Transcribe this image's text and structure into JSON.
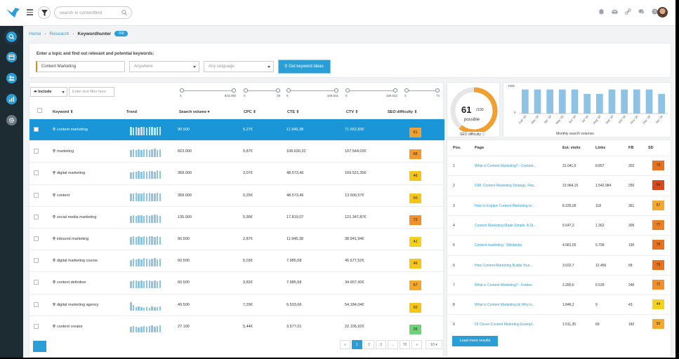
{
  "search": {
    "placeholder": "search in contentbird"
  },
  "breadcrumb": {
    "home": "Home",
    "research": "Research",
    "current": "Keywordhunter",
    "badge": "700"
  },
  "form": {
    "question": "Enter a topic and find out relevant and potential keywords:",
    "topic_value": "Content Marketing",
    "location_value": "Anywhere",
    "language_value": "Any language",
    "button_label": "Get keyword ideas"
  },
  "filters": {
    "include_label": "Include",
    "text_filter_placeholder": "Enter text filter here",
    "sliders": [
      {
        "lo": "0",
        "hi": "823.000"
      },
      {
        "lo": "0",
        "hi": "29"
      },
      {
        "lo": "0",
        "hi": "108.631"
      },
      {
        "lo": "0",
        "hi": "169.522"
      },
      {
        "lo": "3",
        "hi": "72"
      }
    ]
  },
  "table": {
    "headers": {
      "keyword": "Keyword ⇕",
      "trend": "Trend",
      "volume": "Search volume ▾",
      "cpc": "CPC ⇕",
      "cte": "CTE ⇕",
      "ctv": "CTV ⇕",
      "seo": "SEO difficulty ⇕"
    },
    "rows": [
      {
        "keyword": "content marketing",
        "volume": "90.500",
        "cpc": "5,27€",
        "cte": "11.945,38",
        "ctv": "71.552,83€",
        "seo": "61",
        "color": "#f0a030",
        "trend": [
          12,
          11,
          12,
          11,
          12,
          12,
          11,
          12,
          12,
          11,
          12,
          12
        ]
      },
      {
        "keyword": "marketing",
        "volume": "823.000",
        "cpc": "0,87€",
        "cte": "108.630,32",
        "ctv": "107.544,02€",
        "seo": "68",
        "color": "#f39a2c",
        "trend": [
          10,
          11,
          10,
          11,
          10,
          11,
          11,
          10,
          11,
          12,
          10,
          11
        ]
      },
      {
        "keyword": "digital marketing",
        "volume": "368.000",
        "cpc": "3,07€",
        "cte": "48.573,46",
        "ctv": "169.521,35€",
        "seo": "46",
        "color": "#f5c518",
        "trend": [
          9,
          10,
          10,
          11,
          10,
          11,
          10,
          11,
          11,
          10,
          12,
          11
        ]
      },
      {
        "keyword": "content",
        "volume": "368.000",
        "cpc": "0,25€",
        "cte": "48.573,46",
        "ctv": "13.600,57€",
        "seo": "50",
        "color": "#f5c518",
        "trend": [
          11,
          11,
          12,
          11,
          11,
          12,
          11,
          12,
          11,
          11,
          12,
          11
        ]
      },
      {
        "keyword": "social media marketing",
        "volume": "135.000",
        "cpc": "5,99€",
        "cte": "17.819,07",
        "ctv": "121.347,87€",
        "seo": "72",
        "color": "#f0902a",
        "trend": [
          10,
          11,
          10,
          11,
          11,
          10,
          11,
          10,
          11,
          12,
          11,
          10
        ]
      },
      {
        "keyword": "inbound marketing",
        "volume": "90.500",
        "cpc": "2,87€",
        "cte": "11.945,38",
        "ctv": "38.941,94€",
        "seo": "41",
        "color": "#f5d21a",
        "trend": [
          11,
          12,
          11,
          12,
          11,
          12,
          11,
          12,
          12,
          11,
          12,
          11
        ]
      },
      {
        "keyword": "digital marketing course",
        "volume": "60.500",
        "cpc": "5,03€",
        "cte": "7.985,58",
        "ctv": "45.677,52€",
        "seo": "46",
        "color": "#f5c518",
        "trend": [
          9,
          11,
          10,
          11,
          10,
          12,
          11,
          10,
          11,
          12,
          10,
          11
        ]
      },
      {
        "keyword": "content definition",
        "volume": "60.500",
        "cpc": "3,82€",
        "cte": "7.985,58",
        "ctv": "34.657,42€",
        "seo": "57",
        "color": "#f4a82c",
        "trend": [
          10,
          11,
          11,
          10,
          11,
          10,
          11,
          11,
          10,
          11,
          10,
          11
        ]
      },
      {
        "keyword": "digital marketing agency",
        "volume": "49.500",
        "cpc": "7,29€",
        "cte": "6.533,66",
        "ctv": "54.184,04€",
        "seo": "50",
        "color": "#f5c518",
        "trend": [
          12,
          8,
          5,
          6,
          5,
          4,
          5,
          4,
          6,
          5,
          5,
          6
        ]
      },
      {
        "keyword": "content creator",
        "volume": "27.100",
        "cpc": "5,44€",
        "cte": "3.577,01",
        "ctv": "22.105,92€",
        "seo": "26",
        "color": "#6fd37a",
        "trend": [
          8,
          9,
          8,
          7,
          8,
          9,
          8,
          9,
          10,
          8,
          9,
          10
        ]
      }
    ]
  },
  "pagination": {
    "prev": "«",
    "pages": [
      "1",
      "2",
      "3",
      "...",
      "70"
    ],
    "next": "»",
    "size": "10 ▾"
  },
  "difficulty": {
    "value": "61",
    "of": "/100",
    "label": "possible",
    "caption": "SEO difficulty ⓘ",
    "fraction": 0.61
  },
  "chart_data": {
    "type": "bar",
    "title": "",
    "xlabel": "Monthly search volumes",
    "ylabel": "",
    "ylim": [
      0,
      100000
    ],
    "yticks": [
      "100k",
      "0"
    ],
    "categories": [
      "Feb '18",
      "Mar '18",
      "Apr '18",
      "May '18",
      "Jun '18",
      "Jul '18",
      "Aug '18",
      "Sep '18",
      "Oct '18",
      "Nov '18",
      "Dec '18",
      "Jan '19"
    ],
    "values": [
      90500,
      90500,
      90500,
      90500,
      90500,
      74000,
      74000,
      90500,
      90500,
      90500,
      90500,
      74000
    ]
  },
  "serp": {
    "headers": {
      "pos": "Pos.",
      "page": "Page",
      "visits": "Est. visits",
      "links": "Links",
      "fb": "FB",
      "sd": "SD"
    },
    "rows": [
      {
        "pos": "1",
        "page": "What is Content Marketing? - Content...",
        "visits": "31.041,5",
        "links": "8.857",
        "fb": "202",
        "sd": "79",
        "color": "#e8731e"
      },
      {
        "pos": "2",
        "page": "CMI: Content Marketing Strategy, Res...",
        "visits": "13.964,15",
        "links": "1.542.084",
        "fb": "250",
        "sd": "94",
        "color": "#d64a1c"
      },
      {
        "pos": "3",
        "page": "How to Explain Content Marketing to...",
        "visits": "8.335,05",
        "links": "118",
        "fb": "361",
        "sd": "57",
        "color": "#f4a82c"
      },
      {
        "pos": "4",
        "page": "Content Marketing Made Simple: A St...",
        "visits": "5.647,2",
        "links": "1.362",
        "fb": "306",
        "sd": "77",
        "color": "#ec7f22"
      },
      {
        "pos": "5",
        "page": "Content marketing - Wikipedia",
        "visits": "4.081,55",
        "links": "5.799",
        "fb": "190",
        "sd": "79",
        "color": "#e8731e"
      },
      {
        "pos": "6",
        "page": "How Content Marketing Builds Your...",
        "visits": "3.022,7",
        "links": "12.456",
        "fb": "58",
        "sd": "79",
        "color": "#e8731e"
      },
      {
        "pos": "7",
        "page": "What is Content Marketing? - Forbes",
        "visits": "2.280,6",
        "links": "5.539",
        "fb": "246",
        "sd": "72",
        "color": "#f0902a"
      },
      {
        "pos": "8",
        "page": "What is Content Marketing (& Why is...",
        "visits": "1.846,2",
        "links": "9",
        "fb": "43",
        "sd": "44",
        "color": "#f5d21a"
      },
      {
        "pos": "9",
        "page": "25 Clever Content Marketing Exampl...",
        "visits": "1.511,35",
        "links": "69",
        "fb": "182",
        "sd": "56",
        "color": "#f4a82c"
      }
    ],
    "more_label": "Load more results"
  },
  "colors": {
    "accent": "#2a9ed6",
    "sidebar": "#1d2b33",
    "gauge": "#f0a030"
  }
}
